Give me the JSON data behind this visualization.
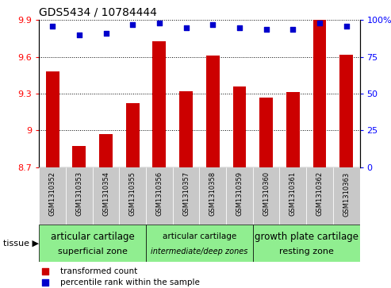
{
  "title": "GDS5434 / 10784444",
  "samples": [
    "GSM1310352",
    "GSM1310353",
    "GSM1310354",
    "GSM1310355",
    "GSM1310356",
    "GSM1310357",
    "GSM1310358",
    "GSM1310359",
    "GSM1310360",
    "GSM1310361",
    "GSM1310362",
    "GSM1310363"
  ],
  "red_values": [
    9.48,
    8.87,
    8.97,
    9.22,
    9.73,
    9.32,
    9.61,
    9.36,
    9.27,
    9.31,
    9.99,
    9.62
  ],
  "blue_values": [
    96,
    90,
    91,
    97,
    98,
    95,
    97,
    95,
    94,
    94,
    98,
    96
  ],
  "ylim_left": [
    8.7,
    9.9
  ],
  "ylim_right": [
    0,
    100
  ],
  "yticks_left": [
    8.7,
    9.0,
    9.3,
    9.6,
    9.9
  ],
  "yticks_right": [
    0,
    25,
    50,
    75,
    100
  ],
  "ytick_labels_left": [
    "8.7",
    "9",
    "9.3",
    "9.6",
    "9.9"
  ],
  "ytick_labels_right": [
    "0",
    "25",
    "50",
    "75",
    "100%"
  ],
  "bar_color": "#cc0000",
  "dot_color": "#0000cc",
  "bar_width": 0.5,
  "label_bg_color": "#c8c8c8",
  "green_color": "#90ee90",
  "group_configs": [
    {
      "label1": "articular cartilage",
      "label2": "superficial zone",
      "start": 0,
      "end": 4,
      "italic": false
    },
    {
      "label1": "articular cartilage",
      "label2": "intermediate/deep zones",
      "start": 4,
      "end": 8,
      "italic": true
    },
    {
      "label1": "growth plate cartilage",
      "label2": "resting zone",
      "start": 8,
      "end": 12,
      "italic": false
    }
  ]
}
